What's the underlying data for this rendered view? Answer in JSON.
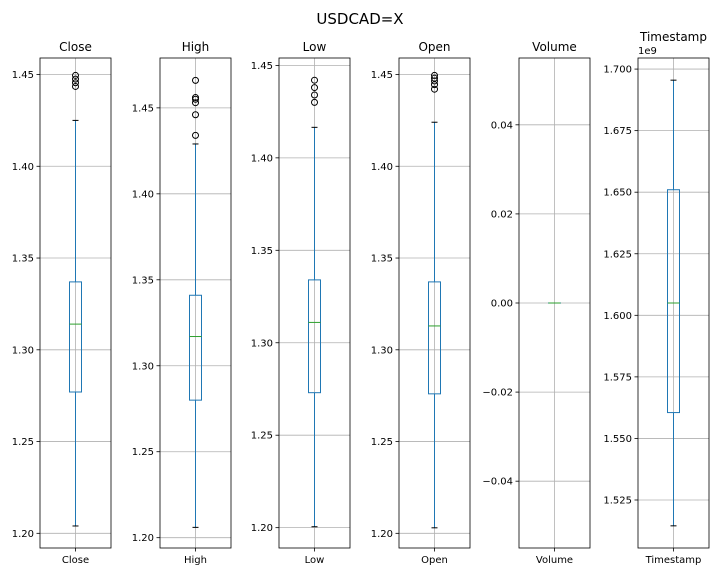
{
  "chart_data": {
    "type": "boxplot",
    "title": "USDCAD=X",
    "panels": [
      {
        "title": "Close",
        "category": "Close",
        "ylim": [
          1.192,
          1.459
        ],
        "yticks": [
          1.2,
          1.25,
          1.3,
          1.35,
          1.4,
          1.45
        ],
        "ytick_labels": [
          "1.20",
          "1.25",
          "1.30",
          "1.35",
          "1.40",
          "1.45"
        ],
        "stats": {
          "whislo": 1.204,
          "q1": 1.277,
          "median": 1.314,
          "q3": 1.337,
          "whishi": 1.425
        },
        "fliers": [
          1.4435,
          1.4455,
          1.4475,
          1.4495
        ]
      },
      {
        "title": "High",
        "category": "High",
        "ylim": [
          1.194,
          1.479
        ],
        "yticks": [
          1.2,
          1.25,
          1.3,
          1.35,
          1.4,
          1.45
        ],
        "ytick_labels": [
          "1.20",
          "1.25",
          "1.30",
          "1.35",
          "1.40",
          "1.45"
        ],
        "stats": {
          "whislo": 1.206,
          "q1": 1.28,
          "median": 1.317,
          "q3": 1.341,
          "whishi": 1.429
        },
        "fliers": [
          1.434,
          1.446,
          1.453,
          1.455,
          1.456,
          1.466
        ]
      },
      {
        "title": "Low",
        "category": "Low",
        "ylim": [
          1.189,
          1.454
        ],
        "yticks": [
          1.2,
          1.25,
          1.3,
          1.35,
          1.4,
          1.45
        ],
        "ytick_labels": [
          "1.20",
          "1.25",
          "1.30",
          "1.35",
          "1.40",
          "1.45"
        ],
        "stats": {
          "whislo": 1.2005,
          "q1": 1.273,
          "median": 1.311,
          "q3": 1.334,
          "whishi": 1.4165
        },
        "fliers": [
          1.43,
          1.434,
          1.438,
          1.442
        ]
      },
      {
        "title": "Open",
        "category": "Open",
        "ylim": [
          1.192,
          1.459
        ],
        "yticks": [
          1.2,
          1.25,
          1.3,
          1.35,
          1.4,
          1.45
        ],
        "ytick_labels": [
          "1.20",
          "1.25",
          "1.30",
          "1.35",
          "1.40",
          "1.45"
        ],
        "stats": {
          "whislo": 1.203,
          "q1": 1.276,
          "median": 1.313,
          "q3": 1.337,
          "whishi": 1.424
        },
        "fliers": [
          1.442,
          1.4445,
          1.4465,
          1.448,
          1.4495
        ]
      },
      {
        "title": "Volume",
        "category": "Volume",
        "ylim": [
          -0.055,
          0.055
        ],
        "yticks": [
          -0.04,
          -0.02,
          0.0,
          0.02,
          0.04
        ],
        "ytick_labels": [
          "−0.04",
          "−0.02",
          "0.00",
          "0.02",
          "0.04"
        ],
        "stats": {
          "whislo": 0,
          "q1": 0,
          "median": 0,
          "q3": 0,
          "whishi": 0
        },
        "fliers": []
      },
      {
        "title": "Timestamp",
        "category": "Timestamp",
        "offset_label": "1e9",
        "ylim": [
          1.5055,
          1.7045
        ],
        "yticks": [
          1.525,
          1.55,
          1.575,
          1.6,
          1.625,
          1.65,
          1.675,
          1.7
        ],
        "ytick_labels": [
          "1.525",
          "1.550",
          "1.575",
          "1.600",
          "1.625",
          "1.650",
          "1.675",
          "1.700"
        ],
        "stats": {
          "whislo": 1.5145,
          "q1": 1.5605,
          "median": 1.605,
          "q3": 1.651,
          "whishi": 1.6955
        },
        "fliers": []
      }
    ],
    "grid": true
  }
}
